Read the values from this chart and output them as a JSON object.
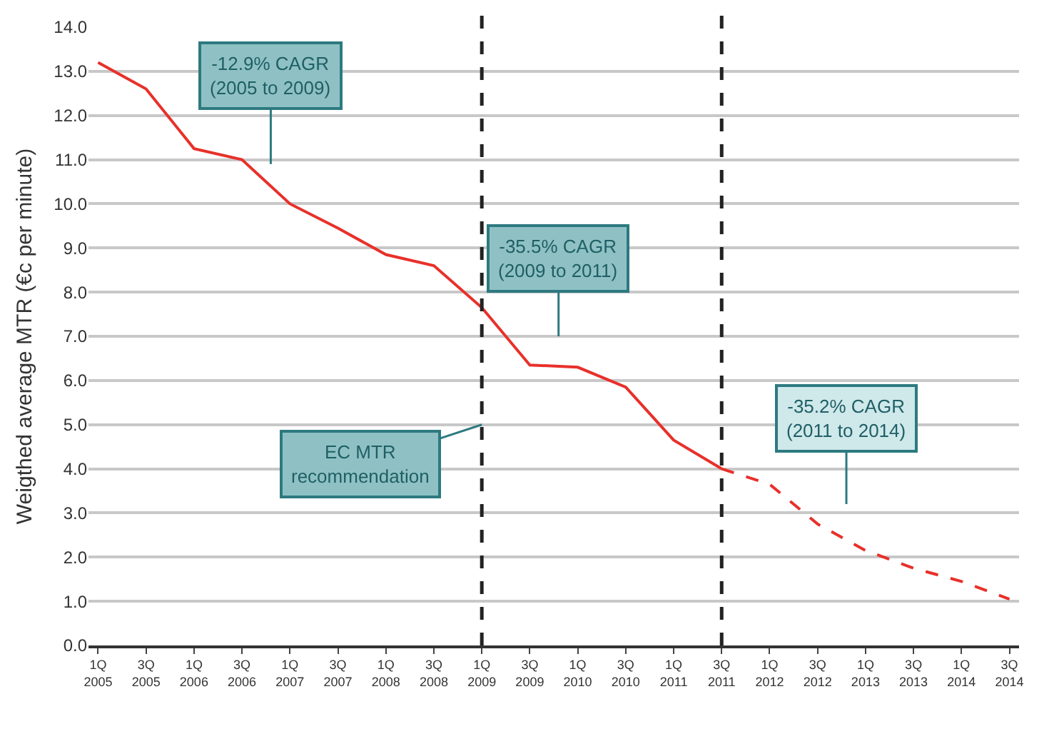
{
  "chart_data": {
    "type": "line",
    "ylabel": "Weigthed average MTR (€c per minute)",
    "categories": [
      "1Q 2005",
      "3Q 2005",
      "1Q 2006",
      "3Q 2006",
      "1Q 2007",
      "3Q 2007",
      "1Q 2008",
      "3Q 2008",
      "1Q 2009",
      "3Q 2009",
      "1Q 2010",
      "3Q 2010",
      "1Q 2011",
      "3Q 2011",
      "1Q 2012",
      "3Q 2012",
      "1Q 2013",
      "3Q 2013",
      "1Q 2014",
      "3Q 2014"
    ],
    "series": [
      {
        "color": "#e8302a",
        "line_style": "solid",
        "values": [
          13.2,
          12.6,
          11.25,
          11.0,
          10.0,
          9.45,
          8.85,
          8.6,
          7.65,
          6.35,
          6.3,
          5.85,
          4.65,
          4.0,
          null,
          null,
          null,
          null,
          null,
          null
        ]
      },
      {
        "color": "#e8302a",
        "line_style": "dashed",
        "values": [
          null,
          null,
          null,
          null,
          null,
          null,
          null,
          null,
          null,
          null,
          null,
          null,
          null,
          4.0,
          3.65,
          2.75,
          2.15,
          1.75,
          1.45,
          1.05
        ]
      }
    ],
    "ylim": [
      0,
      14
    ],
    "yticks": [
      {
        "value": 0,
        "label": "0.0"
      },
      {
        "value": 1,
        "label": "1.0"
      },
      {
        "value": 2,
        "label": "2.0"
      },
      {
        "value": 3,
        "label": "3.0"
      },
      {
        "value": 4,
        "label": "4.0"
      },
      {
        "value": 5,
        "label": "5.0"
      },
      {
        "value": 6,
        "label": "6.0"
      },
      {
        "value": 7,
        "label": "7.0"
      },
      {
        "value": 8,
        "label": "8.0"
      },
      {
        "value": 9,
        "label": "9.0"
      },
      {
        "value": 10,
        "label": "10.0"
      },
      {
        "value": 11,
        "label": "11.0"
      },
      {
        "value": 12,
        "label": "12.0"
      },
      {
        "value": 13,
        "label": "13.0"
      },
      {
        "value": 14,
        "label": "14.0"
      }
    ],
    "ref_lines": [
      {
        "axis": "x",
        "value": "1Q 2009",
        "color": "#222222",
        "line_style": "dashed"
      },
      {
        "axis": "x",
        "value": "3Q 2011",
        "color": "#222222",
        "line_style": "dashed"
      }
    ],
    "annotations": [
      "-12.9% CAGR\n(2005 to 2009)",
      "-35.5% CAGR\n(2009 to 2011)",
      {
        "text": "EC MTR\nrecommendation",
        "x": "1Q 2009",
        "y": 5
      },
      "-35.2% CAGR\n(2011 to 2014)"
    ],
    "grid": "y",
    "marker": "none"
  }
}
